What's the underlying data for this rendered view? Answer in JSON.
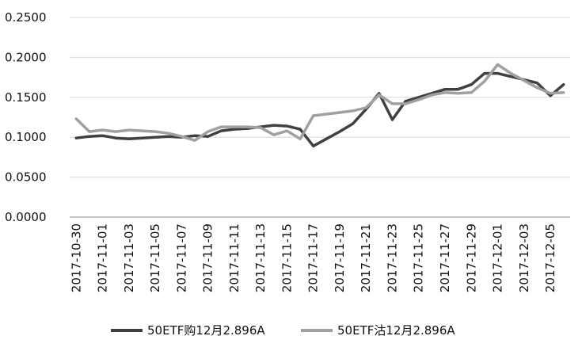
{
  "chart_data": {
    "type": "line",
    "title": "",
    "xlabel": "",
    "ylabel": "",
    "ylim": [
      0,
      0.25
    ],
    "y_ticks": [
      "0.0000",
      "0.0500",
      "0.1000",
      "0.1500",
      "0.2000",
      "0.2500"
    ],
    "x_tick_labels": [
      "2017-10-30",
      "2017-11-01",
      "2017-11-03",
      "2017-11-05",
      "2017-11-07",
      "2017-11-09",
      "2017-11-11",
      "2017-11-13",
      "2017-11-15",
      "2017-11-17",
      "2017-11-19",
      "2017-11-21",
      "2017-11-23",
      "2017-11-25",
      "2017-11-27",
      "2017-11-29",
      "2017-12-01",
      "2017-12-03",
      "2017-12-05"
    ],
    "x": [
      "2017-10-30",
      "2017-10-31",
      "2017-11-01",
      "2017-11-02",
      "2017-11-03",
      "2017-11-04",
      "2017-11-05",
      "2017-11-06",
      "2017-11-07",
      "2017-11-08",
      "2017-11-09",
      "2017-11-10",
      "2017-11-11",
      "2017-11-12",
      "2017-11-13",
      "2017-11-14",
      "2017-11-15",
      "2017-11-16",
      "2017-11-17",
      "2017-11-18",
      "2017-11-19",
      "2017-11-20",
      "2017-11-21",
      "2017-11-22",
      "2017-11-23",
      "2017-11-24",
      "2017-11-25",
      "2017-11-26",
      "2017-11-27",
      "2017-11-28",
      "2017-11-29",
      "2017-11-30",
      "2017-12-01",
      "2017-12-02",
      "2017-12-03",
      "2017-12-04",
      "2017-12-05",
      "2017-12-06"
    ],
    "grid": true,
    "legend_position": "bottom",
    "series": [
      {
        "name": "50ETF购12月2.896A",
        "color": "#404040",
        "values": [
          0.099,
          0.101,
          0.102,
          0.099,
          0.098,
          0.099,
          0.1,
          0.101,
          0.1,
          0.102,
          0.101,
          0.108,
          0.11,
          0.111,
          0.113,
          0.115,
          0.114,
          0.11,
          0.089,
          0.098,
          0.107,
          0.117,
          0.135,
          0.155,
          0.122,
          0.145,
          0.15,
          0.155,
          0.16,
          0.16,
          0.166,
          0.18,
          0.18,
          0.176,
          0.172,
          0.168,
          0.152,
          0.166
        ]
      },
      {
        "name": "50ETF沽12月2.896A",
        "color": "#a0a0a0",
        "values": [
          0.123,
          0.107,
          0.109,
          0.107,
          0.109,
          0.108,
          0.107,
          0.105,
          0.101,
          0.096,
          0.107,
          0.113,
          0.113,
          0.113,
          0.112,
          0.103,
          0.108,
          0.098,
          0.127,
          0.129,
          0.131,
          0.133,
          0.137,
          0.153,
          0.142,
          0.142,
          0.147,
          0.153,
          0.156,
          0.155,
          0.156,
          0.17,
          0.191,
          0.18,
          0.171,
          0.162,
          0.155,
          0.156
        ]
      }
    ]
  }
}
